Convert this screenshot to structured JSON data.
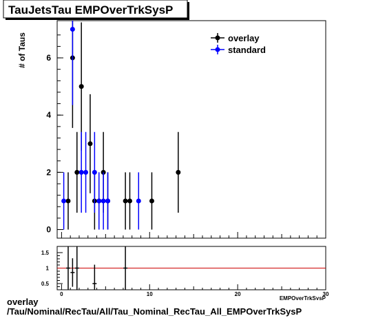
{
  "title": "TauJetsTau EMPOverTrkSysP",
  "footer": {
    "line1": "overlay",
    "line2": "/Tau/Nominal/RecTau/All/Tau_Nominal_RecTau_All_EMPOverTrkSysP"
  },
  "colors": {
    "overlay": "#000000",
    "standard": "#0000ff",
    "ratio_line": "#cc0000"
  },
  "chart_data": [
    {
      "type": "scatter",
      "title": "TauJetsTau EMPOverTrkSysP",
      "xlabel": "",
      "ylabel": "# of Taus",
      "xlim": [
        -0.5,
        30
      ],
      "ylim": [
        -0.3,
        7.3
      ],
      "yticks": [
        0,
        2,
        4,
        6
      ],
      "legend_position": "top-right",
      "series": [
        {
          "name": "overlay",
          "color": "#000000",
          "points": [
            {
              "x": 0.75,
              "y": 1,
              "err": 1.0
            },
            {
              "x": 1.25,
              "y": 6,
              "err": 2.45
            },
            {
              "x": 1.75,
              "y": 2,
              "err": 1.41
            },
            {
              "x": 2.25,
              "y": 5,
              "err": 2.24
            },
            {
              "x": 3.25,
              "y": 3,
              "err": 1.73
            },
            {
              "x": 3.75,
              "y": 1,
              "err": 1.0
            },
            {
              "x": 4.25,
              "y": 1,
              "err": 1.0
            },
            {
              "x": 4.75,
              "y": 2,
              "err": 1.41
            },
            {
              "x": 5.25,
              "y": 1,
              "err": 1.0
            },
            {
              "x": 7.25,
              "y": 1,
              "err": 1.0
            },
            {
              "x": 7.75,
              "y": 1,
              "err": 1.0
            },
            {
              "x": 10.25,
              "y": 1,
              "err": 1.0
            },
            {
              "x": 13.25,
              "y": 2,
              "err": 1.41
            }
          ]
        },
        {
          "name": "standard",
          "color": "#0000ff",
          "points": [
            {
              "x": 0.25,
              "y": 1,
              "err": 1.0
            },
            {
              "x": 1.25,
              "y": 7,
              "err": 2.65
            },
            {
              "x": 2.25,
              "y": 2,
              "err": 1.41
            },
            {
              "x": 2.75,
              "y": 2,
              "err": 1.41
            },
            {
              "x": 3.75,
              "y": 2,
              "err": 1.41
            },
            {
              "x": 4.25,
              "y": 1,
              "err": 1.0
            },
            {
              "x": 4.75,
              "y": 1,
              "err": 1.0
            },
            {
              "x": 5.25,
              "y": 1,
              "err": 1.0
            },
            {
              "x": 8.75,
              "y": 1,
              "err": 1.0
            }
          ]
        }
      ]
    },
    {
      "type": "scatter",
      "title": "",
      "xlabel": "EMPOverTrkSysP",
      "ylabel": "",
      "xlim": [
        -0.5,
        30
      ],
      "ylim": [
        0.3,
        1.7
      ],
      "xticks": [
        0,
        10,
        20,
        30
      ],
      "yticks": [
        0.5,
        1,
        1.5
      ],
      "reference_line": 1,
      "series": [
        {
          "name": "ratio",
          "color": "#000000",
          "points": [
            {
              "x": 0.75,
              "y": 1.0,
              "err": 1.41
            },
            {
              "x": 1.25,
              "y": 0.857,
              "err": 0.46
            },
            {
              "x": 1.75,
              "y": 1.0,
              "err": 1.41
            },
            {
              "x": 3.75,
              "y": 0.5,
              "err": 0.61
            },
            {
              "x": 7.25,
              "y": 1.0,
              "err": 1.41
            }
          ]
        }
      ]
    }
  ]
}
